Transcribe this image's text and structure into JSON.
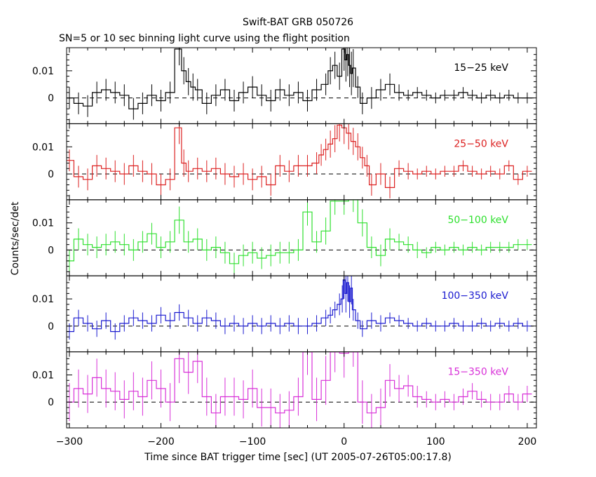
{
  "chart_data": {
    "type": "line",
    "title": "Swift-BAT GRB 050726",
    "subtitle": "SN=5 or 10 sec binning light curve using the flight position",
    "xlabel": "Time since BAT trigger time [sec] (UT 2005-07-26T05:00:17.8)",
    "ylabel": "Counts/sec/det",
    "xlim": [
      -303,
      210
    ],
    "ylim": [
      -0.0095,
      0.0185
    ],
    "x_ticks": [
      -300,
      -200,
      -100,
      0,
      100,
      200
    ],
    "y_ticks": [
      0,
      0.01
    ],
    "y_tick_labels": [
      "0",
      "0.01"
    ],
    "zero_line": "dashed",
    "panels": [
      {
        "name": "15-25 keV",
        "color": "#000000",
        "x": [
          -300,
          -290,
          -280,
          -270,
          -260,
          -250,
          -240,
          -230,
          -220,
          -210,
          -200,
          -190,
          -180,
          -175,
          -170,
          -165,
          -160,
          -150,
          -140,
          -130,
          -120,
          -110,
          -100,
          -90,
          -80,
          -70,
          -60,
          -50,
          -40,
          -30,
          -20,
          -15,
          -10,
          -5,
          0,
          2,
          4,
          6,
          8,
          10,
          15,
          20,
          30,
          40,
          50,
          60,
          70,
          80,
          90,
          100,
          110,
          120,
          130,
          140,
          150,
          160,
          170,
          180,
          190,
          200
        ],
        "y": [
          0.0,
          -0.002,
          -0.003,
          0.002,
          0.003,
          0.002,
          0.001,
          -0.004,
          -0.002,
          0.001,
          -0.001,
          0.002,
          0.018,
          0.01,
          0.006,
          0.004,
          0.003,
          -0.002,
          0.001,
          0.003,
          -0.001,
          0.002,
          0.004,
          0.001,
          -0.001,
          0.003,
          0.001,
          0.002,
          -0.001,
          0.003,
          0.005,
          0.01,
          0.012,
          0.008,
          0.018,
          0.014,
          0.016,
          0.012,
          0.009,
          0.011,
          0.004,
          -0.002,
          0.0,
          0.003,
          0.005,
          0.002,
          0.001,
          0.002,
          0.001,
          0.0,
          0.001,
          0.001,
          0.002,
          0.001,
          0.0,
          0.001,
          0.0,
          0.001,
          0.0,
          0.0
        ],
        "err": [
          0.004,
          0.004,
          0.004,
          0.004,
          0.004,
          0.004,
          0.004,
          0.004,
          0.004,
          0.004,
          0.004,
          0.004,
          0.006,
          0.005,
          0.005,
          0.005,
          0.004,
          0.004,
          0.004,
          0.004,
          0.004,
          0.004,
          0.004,
          0.004,
          0.004,
          0.004,
          0.004,
          0.004,
          0.004,
          0.004,
          0.004,
          0.005,
          0.005,
          0.005,
          0.008,
          0.008,
          0.008,
          0.008,
          0.008,
          0.007,
          0.004,
          0.004,
          0.004,
          0.004,
          0.004,
          0.003,
          0.002,
          0.002,
          0.002,
          0.002,
          0.002,
          0.002,
          0.002,
          0.002,
          0.002,
          0.002,
          0.002,
          0.002,
          0.002,
          0.002
        ]
      },
      {
        "name": "25-50 keV",
        "color": "#dc2020",
        "x": [
          -300,
          -290,
          -280,
          -270,
          -260,
          -250,
          -240,
          -230,
          -220,
          -210,
          -200,
          -190,
          -180,
          -175,
          -170,
          -160,
          -150,
          -140,
          -130,
          -120,
          -110,
          -100,
          -90,
          -80,
          -70,
          -60,
          -50,
          -40,
          -30,
          -25,
          -20,
          -15,
          -10,
          -5,
          0,
          5,
          10,
          15,
          20,
          25,
          30,
          40,
          50,
          60,
          70,
          80,
          90,
          100,
          110,
          120,
          130,
          140,
          150,
          160,
          170,
          180,
          190,
          200
        ],
        "y": [
          0.005,
          -0.001,
          -0.002,
          0.003,
          0.002,
          0.001,
          0.0,
          0.003,
          0.001,
          0.0,
          -0.004,
          -0.002,
          0.017,
          0.004,
          0.001,
          0.002,
          0.001,
          0.002,
          0.0,
          -0.001,
          0.0,
          -0.002,
          -0.001,
          -0.004,
          0.003,
          0.001,
          0.003,
          0.003,
          0.004,
          0.007,
          0.009,
          0.011,
          0.013,
          0.018,
          0.017,
          0.015,
          0.012,
          0.01,
          0.006,
          0.003,
          -0.004,
          0.0,
          -0.005,
          0.002,
          0.001,
          0.0,
          0.001,
          0.0,
          0.001,
          0.001,
          0.003,
          0.001,
          0.0,
          0.001,
          0.0,
          0.003,
          -0.002,
          0.001
        ],
        "err": [
          0.004,
          0.004,
          0.004,
          0.004,
          0.004,
          0.004,
          0.004,
          0.004,
          0.004,
          0.004,
          0.004,
          0.004,
          0.006,
          0.005,
          0.004,
          0.004,
          0.004,
          0.004,
          0.004,
          0.004,
          0.004,
          0.004,
          0.004,
          0.004,
          0.004,
          0.004,
          0.004,
          0.004,
          0.004,
          0.004,
          0.004,
          0.005,
          0.005,
          0.006,
          0.006,
          0.006,
          0.005,
          0.005,
          0.004,
          0.004,
          0.004,
          0.004,
          0.004,
          0.003,
          0.003,
          0.002,
          0.002,
          0.002,
          0.002,
          0.002,
          0.002,
          0.002,
          0.002,
          0.002,
          0.002,
          0.002,
          0.002,
          0.002
        ]
      },
      {
        "name": "50-100 keV",
        "color": "#2ee02e",
        "x": [
          -300,
          -290,
          -280,
          -270,
          -260,
          -250,
          -240,
          -230,
          -220,
          -210,
          -200,
          -190,
          -180,
          -170,
          -160,
          -150,
          -140,
          -130,
          -120,
          -110,
          -100,
          -90,
          -80,
          -70,
          -60,
          -50,
          -40,
          -30,
          -20,
          -10,
          0,
          10,
          20,
          30,
          40,
          50,
          60,
          70,
          80,
          90,
          100,
          110,
          120,
          130,
          140,
          150,
          160,
          170,
          180,
          190,
          200
        ],
        "y": [
          -0.004,
          0.004,
          0.002,
          0.001,
          0.002,
          0.003,
          0.002,
          0.0,
          0.003,
          0.006,
          0.001,
          0.003,
          0.011,
          0.003,
          0.004,
          0.0,
          0.001,
          -0.001,
          -0.005,
          -0.002,
          -0.001,
          -0.003,
          -0.002,
          -0.001,
          -0.001,
          0.0,
          0.014,
          0.003,
          0.007,
          0.018,
          0.018,
          0.019,
          0.01,
          0.001,
          -0.002,
          0.004,
          0.003,
          0.002,
          0.0,
          -0.001,
          0.001,
          0.0,
          0.001,
          0.0,
          0.001,
          0.0,
          0.001,
          0.001,
          0.001,
          0.002,
          0.002
        ],
        "err": [
          0.004,
          0.004,
          0.004,
          0.004,
          0.004,
          0.004,
          0.004,
          0.004,
          0.004,
          0.004,
          0.004,
          0.004,
          0.005,
          0.004,
          0.004,
          0.004,
          0.004,
          0.004,
          0.004,
          0.004,
          0.004,
          0.004,
          0.004,
          0.004,
          0.004,
          0.004,
          0.005,
          0.004,
          0.005,
          0.005,
          0.005,
          0.005,
          0.005,
          0.004,
          0.004,
          0.004,
          0.003,
          0.003,
          0.003,
          0.002,
          0.002,
          0.002,
          0.002,
          0.002,
          0.002,
          0.002,
          0.002,
          0.002,
          0.002,
          0.002,
          0.002
        ]
      },
      {
        "name": "100-350 keV",
        "color": "#1b1bd0",
        "x": [
          -300,
          -290,
          -280,
          -270,
          -260,
          -250,
          -240,
          -230,
          -220,
          -210,
          -200,
          -190,
          -180,
          -170,
          -160,
          -150,
          -140,
          -130,
          -120,
          -110,
          -100,
          -90,
          -80,
          -70,
          -60,
          -50,
          -40,
          -30,
          -20,
          -15,
          -10,
          -5,
          -2,
          0,
          2,
          4,
          6,
          8,
          10,
          15,
          20,
          30,
          40,
          50,
          60,
          70,
          80,
          90,
          100,
          110,
          120,
          130,
          140,
          150,
          160,
          170,
          180,
          190,
          200
        ],
        "y": [
          -0.002,
          0.003,
          0.001,
          -0.001,
          0.002,
          -0.002,
          0.001,
          0.003,
          0.002,
          0.001,
          0.004,
          0.002,
          0.005,
          0.003,
          0.001,
          0.003,
          0.002,
          0.0,
          0.001,
          0.0,
          0.001,
          0.0,
          0.001,
          0.0,
          0.001,
          0.0,
          0.0,
          0.001,
          0.003,
          0.004,
          0.006,
          0.008,
          0.01,
          0.017,
          0.012,
          0.016,
          0.009,
          0.014,
          0.006,
          0.002,
          -0.001,
          0.002,
          0.001,
          0.003,
          0.002,
          0.001,
          0.0,
          0.001,
          0.0,
          0.0,
          0.001,
          0.0,
          0.0,
          0.001,
          0.0,
          0.001,
          0.0,
          0.001,
          0.0
        ],
        "err": [
          0.003,
          0.003,
          0.003,
          0.003,
          0.003,
          0.003,
          0.003,
          0.003,
          0.003,
          0.003,
          0.003,
          0.003,
          0.003,
          0.003,
          0.003,
          0.003,
          0.003,
          0.003,
          0.003,
          0.003,
          0.003,
          0.003,
          0.003,
          0.003,
          0.003,
          0.003,
          0.003,
          0.003,
          0.003,
          0.003,
          0.003,
          0.004,
          0.005,
          0.007,
          0.007,
          0.007,
          0.006,
          0.006,
          0.004,
          0.003,
          0.003,
          0.003,
          0.003,
          0.002,
          0.002,
          0.002,
          0.002,
          0.002,
          0.002,
          0.002,
          0.002,
          0.002,
          0.002,
          0.002,
          0.002,
          0.002,
          0.002,
          0.002,
          0.002
        ]
      },
      {
        "name": "15-350 keV",
        "color": "#d830d8",
        "x": [
          -300,
          -290,
          -280,
          -270,
          -260,
          -250,
          -240,
          -230,
          -220,
          -210,
          -200,
          -190,
          -180,
          -170,
          -160,
          -150,
          -140,
          -130,
          -120,
          -110,
          -100,
          -90,
          -80,
          -70,
          -60,
          -50,
          -40,
          -30,
          -20,
          -10,
          0,
          10,
          20,
          30,
          40,
          50,
          60,
          70,
          80,
          90,
          100,
          110,
          120,
          130,
          140,
          150,
          160,
          170,
          180,
          190,
          200
        ],
        "y": [
          0.0,
          0.005,
          0.003,
          0.009,
          0.005,
          0.004,
          0.001,
          0.004,
          0.002,
          0.008,
          0.005,
          0.0,
          0.016,
          0.011,
          0.015,
          0.002,
          -0.004,
          0.002,
          0.002,
          0.001,
          0.005,
          -0.002,
          -0.002,
          -0.004,
          -0.003,
          0.002,
          0.019,
          0.001,
          0.008,
          0.02,
          0.018,
          0.022,
          0.0,
          -0.004,
          -0.002,
          0.008,
          0.005,
          0.006,
          0.002,
          0.001,
          0.0,
          0.001,
          0.0,
          0.002,
          0.004,
          0.001,
          0.0,
          0.0,
          0.003,
          0.0,
          0.003
        ],
        "err": [
          0.007,
          0.007,
          0.007,
          0.007,
          0.007,
          0.007,
          0.007,
          0.007,
          0.007,
          0.007,
          0.007,
          0.007,
          0.009,
          0.008,
          0.008,
          0.007,
          0.007,
          0.007,
          0.007,
          0.007,
          0.007,
          0.007,
          0.007,
          0.007,
          0.007,
          0.007,
          0.009,
          0.008,
          0.009,
          0.009,
          0.009,
          0.009,
          0.008,
          0.007,
          0.007,
          0.006,
          0.005,
          0.004,
          0.004,
          0.003,
          0.003,
          0.003,
          0.003,
          0.003,
          0.003,
          0.003,
          0.003,
          0.003,
          0.003,
          0.003,
          0.003
        ]
      }
    ]
  }
}
